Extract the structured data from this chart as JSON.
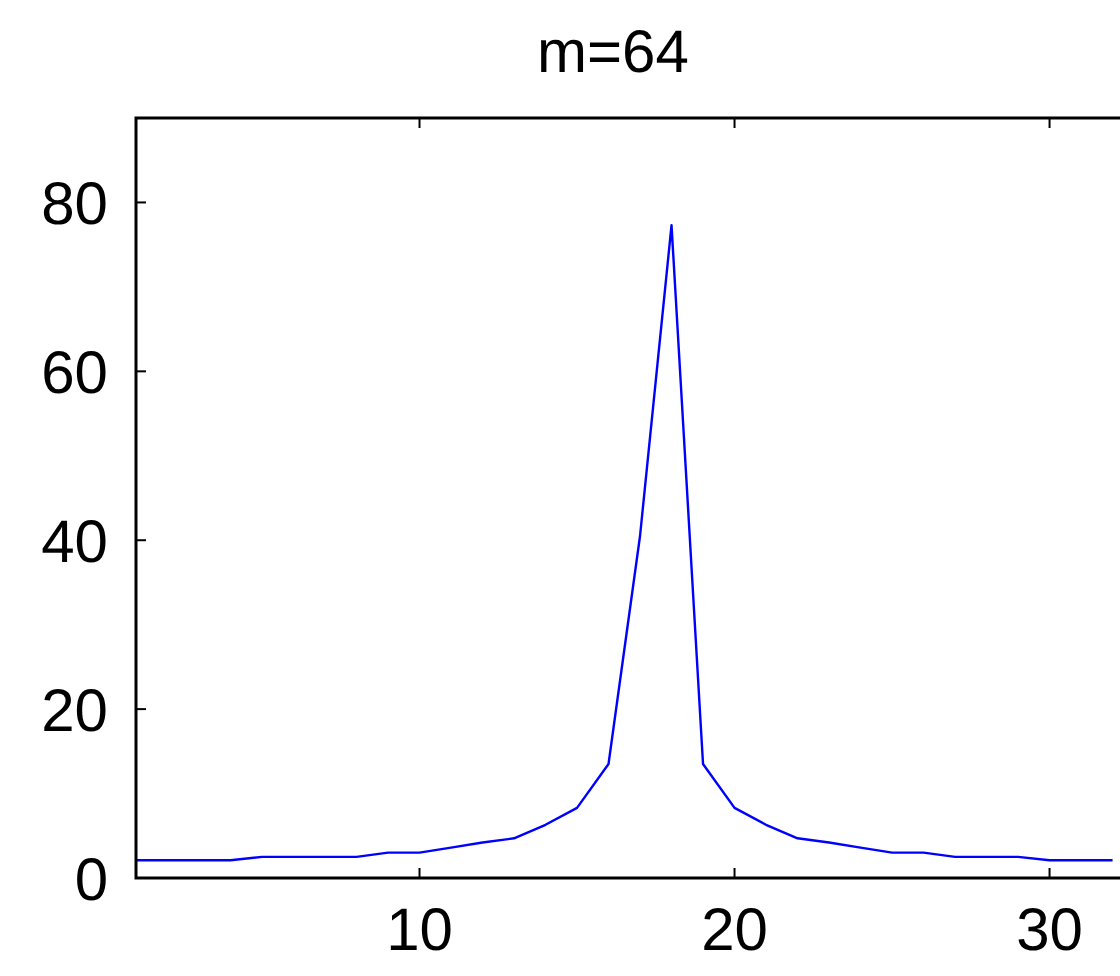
{
  "chart_data": {
    "type": "line",
    "title": "m=64",
    "x": [
      1,
      2,
      3,
      4,
      5,
      6,
      7,
      8,
      9,
      10,
      11,
      12,
      13,
      14,
      15,
      16,
      17,
      18,
      19,
      20,
      21,
      22,
      23,
      24,
      25,
      26,
      27,
      28,
      29,
      30,
      31,
      32
    ],
    "series": [
      {
        "color": "#0000ff",
        "values": [
          2.1,
          2.1,
          2.1,
          2.1,
          2.5,
          2.5,
          2.5,
          2.5,
          3,
          3,
          3.6,
          4.2,
          4.7,
          6.3,
          8.3,
          13.5,
          40.5,
          77.3,
          13.5,
          8.3,
          6.3,
          4.7,
          4.2,
          3.6,
          3,
          3,
          2.5,
          2.5,
          2.5,
          2.1,
          2.1,
          2.1
        ]
      }
    ],
    "xlim": [
      1,
      32.3
    ],
    "ylim": [
      0,
      90
    ],
    "xticks": [
      10,
      20,
      30
    ],
    "yticks": [
      0,
      20,
      40,
      60,
      80
    ],
    "marker": "none",
    "line_style": "solid"
  }
}
